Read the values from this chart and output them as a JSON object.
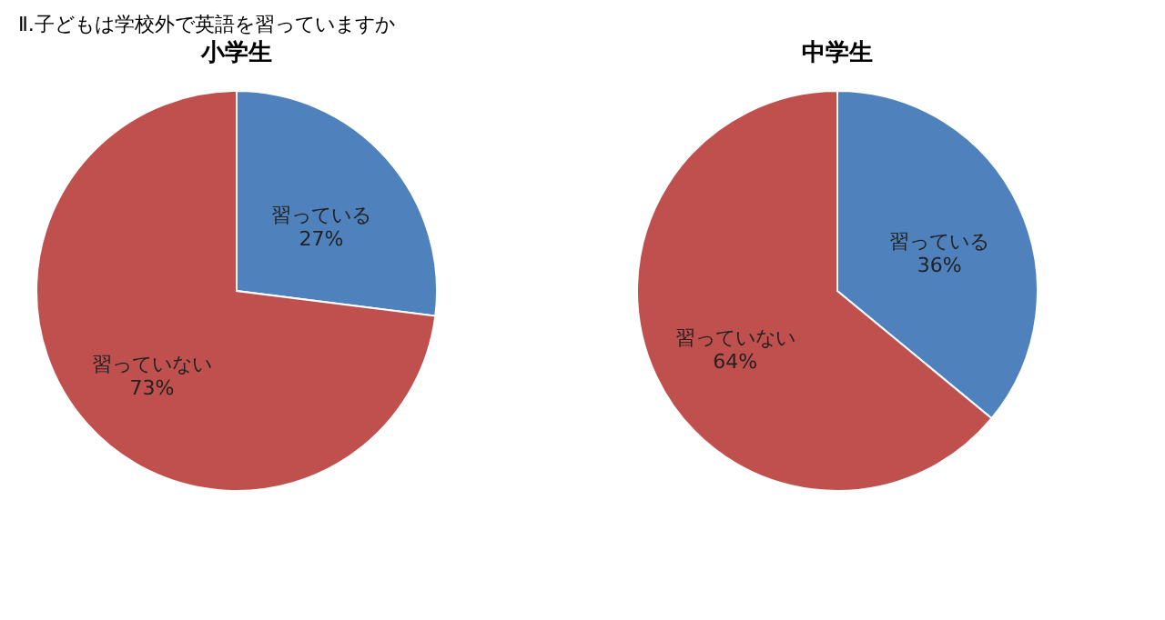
{
  "chart_data": [
    {
      "type": "pie",
      "title": "小学生",
      "annotations": [
        "Ⅱ.子どもは学校外で英語を習っていますか"
      ],
      "categories": [
        "習っている",
        "習っていない"
      ],
      "values": [
        27,
        73
      ],
      "colors": [
        "#4f81bd",
        "#c0504d"
      ],
      "value_labels": [
        "27%",
        "73%"
      ],
      "legend": false
    },
    {
      "type": "pie",
      "title": "中学生",
      "categories": [
        "習っている",
        "習っていない"
      ],
      "values": [
        36,
        64
      ],
      "colors": [
        "#4f81bd",
        "#c0504d"
      ],
      "value_labels": [
        "36%",
        "64%"
      ],
      "legend": false
    }
  ]
}
